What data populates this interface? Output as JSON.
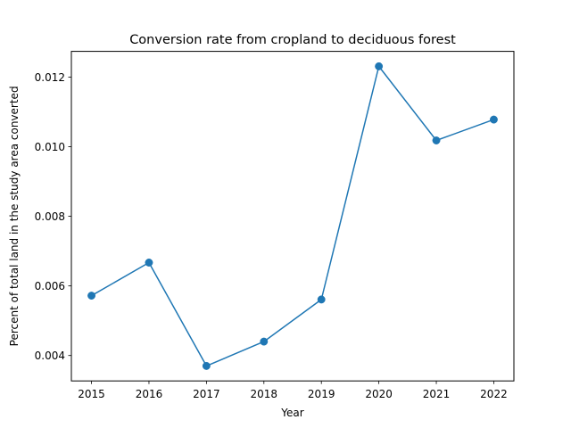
{
  "chart_data": {
    "type": "line",
    "title": "Conversion rate from cropland to deciduous forest",
    "xlabel": "Year",
    "ylabel": "Percent of total land in the study area converted",
    "x": [
      2015,
      2016,
      2017,
      2018,
      2019,
      2020,
      2021,
      2022
    ],
    "series": [
      {
        "values": [
          0.00572,
          0.00667,
          0.0037,
          0.0044,
          0.00561,
          0.01231,
          0.01018,
          0.01078
        ],
        "color": "#1f77b4",
        "marker": "circle"
      }
    ],
    "xlim": [
      2014.65,
      2022.35
    ],
    "ylim": [
      0.00327,
      0.01274
    ],
    "xticks": [
      2015,
      2016,
      2017,
      2018,
      2019,
      2020,
      2021,
      2022
    ],
    "xtick_labels": [
      "2015",
      "2016",
      "2017",
      "2018",
      "2019",
      "2020",
      "2021",
      "2022"
    ],
    "yticks": [
      0.004,
      0.006,
      0.008,
      0.01,
      0.012
    ],
    "ytick_labels": [
      "0.004",
      "0.006",
      "0.008",
      "0.010",
      "0.012"
    ],
    "grid": false,
    "legend": false
  }
}
